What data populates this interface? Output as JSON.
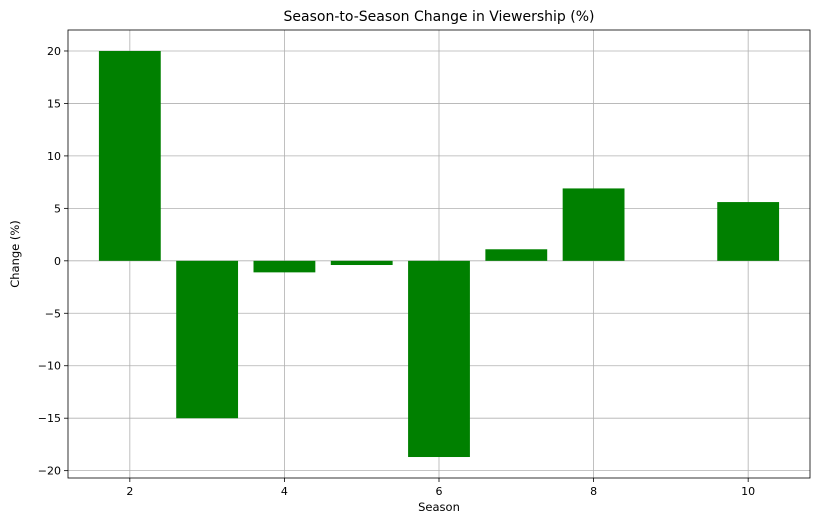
{
  "chart_data": {
    "type": "bar",
    "title": "Season-to-Season Change in Viewership (%)",
    "xlabel": "Season",
    "ylabel": "Change (%)",
    "x": [
      2,
      3,
      4,
      5,
      6,
      7,
      8,
      9,
      10
    ],
    "values": [
      20.0,
      -15.0,
      -1.1,
      -0.4,
      -18.7,
      1.1,
      6.9,
      0.0,
      5.6
    ],
    "xticks": [
      2,
      4,
      6,
      8,
      10
    ],
    "yticks": [
      -20,
      -15,
      -10,
      -5,
      0,
      5,
      10,
      15,
      20
    ],
    "xlim": [
      1.2,
      10.8
    ],
    "ylim": [
      -20.7,
      22.0
    ],
    "bar_color": "#008000",
    "grid": true,
    "legend": "none"
  }
}
